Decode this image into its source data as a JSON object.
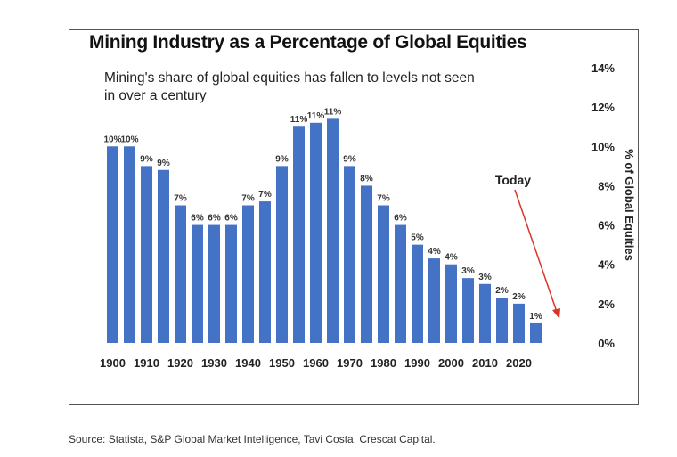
{
  "chart_data": {
    "type": "bar",
    "title": "Mining Industry as a Percentage of Global Equities",
    "subtitle": "Mining's share of global equities has fallen to levels not seen in over a century",
    "categories": [
      1900,
      1905,
      1910,
      1915,
      1920,
      1925,
      1930,
      1935,
      1940,
      1945,
      1950,
      1955,
      1960,
      1965,
      1970,
      1975,
      1980,
      1985,
      1990,
      1995,
      2000,
      2005,
      2010,
      2015,
      2020,
      2025
    ],
    "values": [
      10.0,
      10.0,
      9.0,
      8.8,
      7.0,
      6.0,
      6.0,
      6.0,
      7.0,
      7.2,
      9.0,
      11.0,
      11.2,
      11.4,
      9.0,
      8.0,
      7.0,
      6.0,
      5.0,
      4.3,
      4.0,
      3.3,
      3.0,
      2.3,
      2.0,
      1.0
    ],
    "data_labels": [
      "10%",
      "10%",
      "9%",
      "9%",
      "7%",
      "6%",
      "6%",
      "6%",
      "7%",
      "7%",
      "9%",
      "11%",
      "11%",
      "11%",
      "9%",
      "8%",
      "7%",
      "6%",
      "5%",
      "4%",
      "4%",
      "3%",
      "3%",
      "2%",
      "2%",
      "1%"
    ],
    "x_tick_labels": [
      "1900",
      "1910",
      "1920",
      "1930",
      "1940",
      "1950",
      "1960",
      "1970",
      "1980",
      "1990",
      "2000",
      "2010",
      "2020"
    ],
    "y_tick_labels": [
      "0%",
      "2%",
      "4%",
      "6%",
      "8%",
      "10%",
      "12%",
      "14%"
    ],
    "xlabel": "",
    "ylabel": "% of Global Equities",
    "ylim": [
      0,
      14
    ],
    "y_axis_side": "right",
    "grid": false,
    "annotation": "Today",
    "bar_color": "#4472C4",
    "arrow_color": "#D9342B"
  },
  "source": "Source: Statista, S&P Global Market Intelligence, Tavi Costa, Crescat Capital."
}
